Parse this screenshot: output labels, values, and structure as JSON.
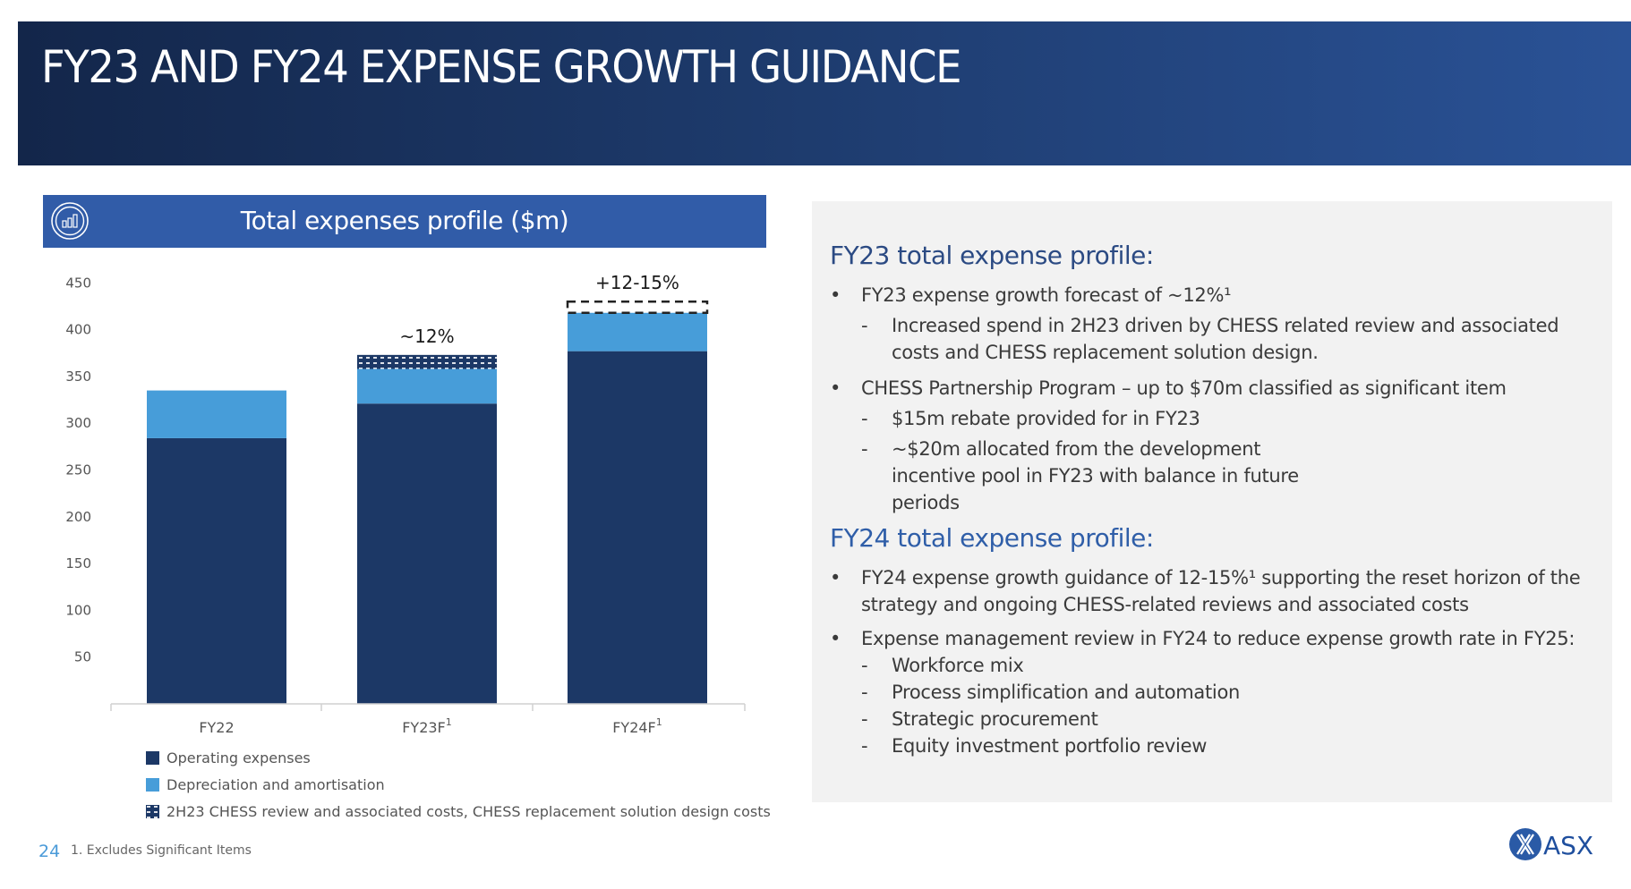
{
  "slide": {
    "title": "FY23 AND FY24 EXPENSE GROWTH GUIDANCE",
    "page_number": "24",
    "footnote": "1. Excludes Significant Items",
    "logo_text": "ASX"
  },
  "chart_header": {
    "title": "Total expenses profile ($m)",
    "icon": "bar-chart-icon"
  },
  "colors": {
    "operating": "#1c3866",
    "depreciation": "#479dd9",
    "chess": "#1c3866",
    "header_bar": "#315ca8"
  },
  "chart_data": {
    "type": "bar",
    "stacked": true,
    "title": "Total expenses profile ($m)",
    "xlabel": "",
    "ylabel": "",
    "ylim": [
      0,
      450
    ],
    "yticks": [
      50,
      100,
      150,
      200,
      250,
      300,
      350,
      400,
      450
    ],
    "grid": false,
    "legend_position": "bottom-left",
    "categories": [
      "FY22",
      "FY23F",
      "FY24F"
    ],
    "category_superscripts": [
      "",
      "1",
      "1"
    ],
    "series": [
      {
        "name": "Operating expenses",
        "values": [
          284,
          321,
          377
        ],
        "pattern": "solid"
      },
      {
        "name": "Depreciation and amortisation",
        "values": [
          51,
          37,
          41
        ],
        "pattern": "solid"
      },
      {
        "name": "2H23 CHESS review and associated costs, CHESS replacement solution design costs",
        "values": [
          0,
          15,
          0
        ],
        "pattern": "hatched"
      }
    ],
    "guidance_range": {
      "category": "FY24F",
      "low": 418,
      "high": 430,
      "style": "dashed-outline"
    },
    "annotations": [
      {
        "category": "FY23F",
        "text": "~12%"
      },
      {
        "category": "FY24F",
        "text": "+12-15%"
      }
    ]
  },
  "panel": {
    "sections": [
      {
        "heading": "FY23 total expense profile:",
        "bullets": [
          {
            "text": "FY23 expense growth forecast of ~12%¹",
            "subs": [
              "Increased spend in 2H23 driven by CHESS related review and associated costs and CHESS replacement solution design."
            ]
          },
          {
            "text": "CHESS Partnership Program – up to $70m classified as significant item",
            "subs": [
              "$15m rebate provided for in FY23",
              "~$20m allocated from the development incentive pool in FY23 with balance in future periods"
            ]
          }
        ]
      },
      {
        "heading": "FY24 total expense profile:",
        "bullets": [
          {
            "text": "FY24 expense growth guidance of 12-15%¹ supporting the reset horizon of the strategy and ongoing CHESS-related reviews and associated costs",
            "subs": []
          },
          {
            "text": "Expense management review in FY24 to reduce expense growth rate in FY25:",
            "subs": [
              "Workforce mix",
              "Process simplification and automation",
              "Strategic procurement",
              "Equity investment portfolio review"
            ]
          }
        ]
      }
    ]
  }
}
